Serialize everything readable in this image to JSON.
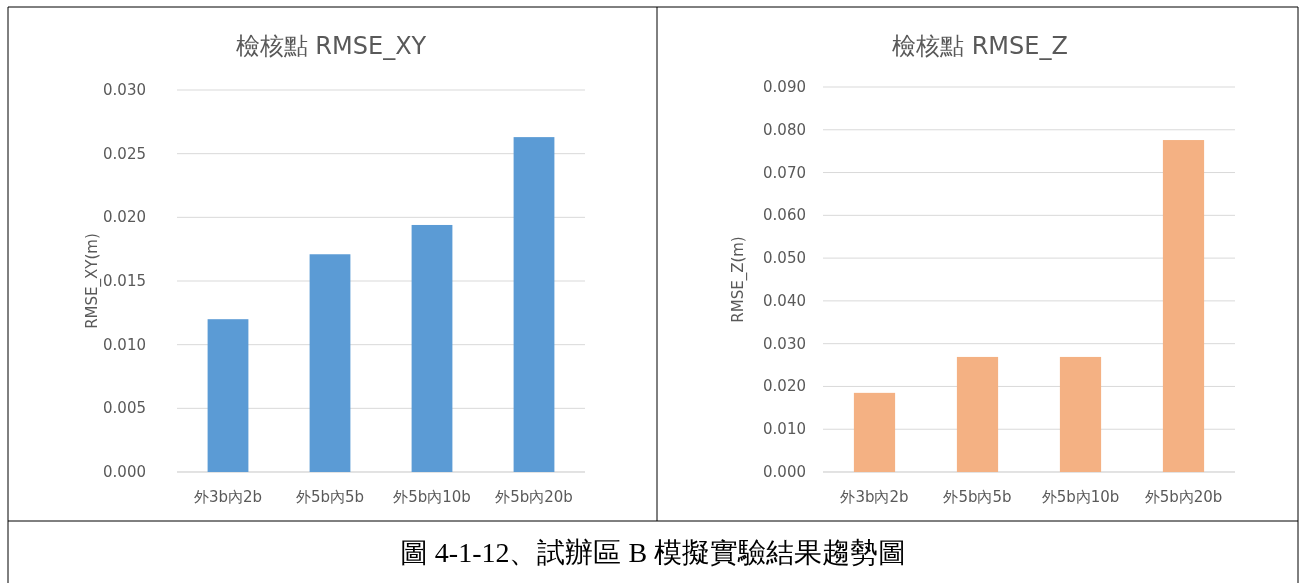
{
  "chart_data": [
    {
      "type": "bar",
      "title": "檢核點 RMSE_XY",
      "ylabel": "RMSE_XY(m)",
      "categories": [
        "外3b內2b",
        "外5b內5b",
        "外5b內10b",
        "外5b內20b"
      ],
      "values": [
        0.012,
        0.0171,
        0.0194,
        0.0263
      ],
      "color": "#5b9bd5",
      "ylim": [
        0,
        0.03
      ],
      "yticks": [
        {
          "value": 0,
          "label": "0.000"
        },
        {
          "value": 0.005,
          "label": "0.005"
        },
        {
          "value": 0.01,
          "label": "0.010"
        },
        {
          "value": 0.015,
          "label": "0.015"
        },
        {
          "value": 0.02,
          "label": "0.020"
        },
        {
          "value": 0.025,
          "label": "0.025"
        },
        {
          "value": 0.03,
          "label": "0.030"
        }
      ],
      "grid": "y",
      "annotations": [
        "圖 4-1-12、試辦區 B 模擬實驗結果趨勢圖"
      ]
    },
    {
      "type": "bar",
      "title": "檢核點 RMSE_Z",
      "ylabel": "RMSE_Z(m)",
      "categories": [
        "外3b內2b",
        "外5b內5b",
        "外5b內10b",
        "外5b內20b"
      ],
      "values": [
        0.0185,
        0.0269,
        0.0269,
        0.0776
      ],
      "color": "#f4b183",
      "ylim": [
        0,
        0.09
      ],
      "yticks": [
        {
          "value": 0,
          "label": "0.000"
        },
        {
          "value": 0.01,
          "label": "0.010"
        },
        {
          "value": 0.02,
          "label": "0.020"
        },
        {
          "value": 0.03,
          "label": "0.030"
        },
        {
          "value": 0.04,
          "label": "0.040"
        },
        {
          "value": 0.05,
          "label": "0.050"
        },
        {
          "value": 0.06,
          "label": "0.060"
        },
        {
          "value": 0.07,
          "label": "0.070"
        },
        {
          "value": 0.08,
          "label": "0.080"
        },
        {
          "value": 0.09,
          "label": "0.090"
        }
      ],
      "grid": "y"
    }
  ]
}
